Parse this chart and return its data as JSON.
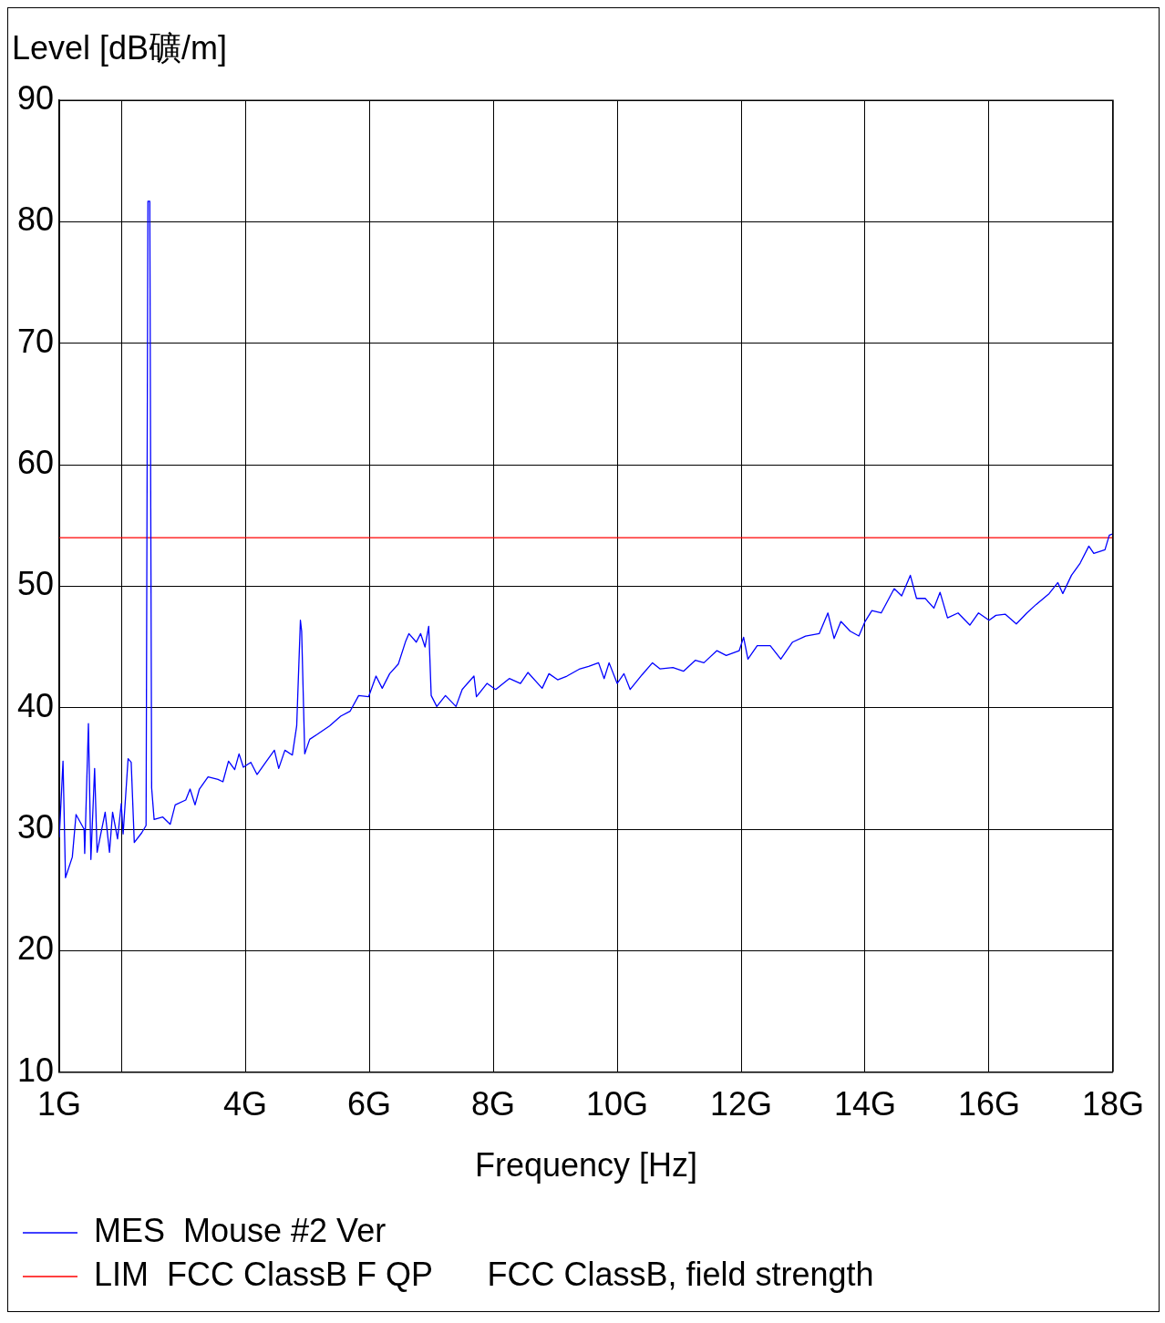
{
  "chart_data": {
    "type": "line",
    "ylabel": "Level [dB礦/m]",
    "xlabel": "Frequency [Hz]",
    "xlim": [
      1,
      18
    ],
    "xticks": [
      {
        "value": 1,
        "label": "1G"
      },
      {
        "value": 2,
        "label": null
      },
      {
        "value": 4,
        "label": "4G"
      },
      {
        "value": 6,
        "label": "6G"
      },
      {
        "value": 8,
        "label": "8G"
      },
      {
        "value": 10,
        "label": "10G"
      },
      {
        "value": 12,
        "label": "12G"
      },
      {
        "value": 14,
        "label": "14G"
      },
      {
        "value": 16,
        "label": "16G"
      },
      {
        "value": 18,
        "label": "18G"
      }
    ],
    "ylim": [
      10,
      90
    ],
    "yticks": [
      10,
      20,
      30,
      40,
      50,
      60,
      70,
      80,
      90
    ],
    "grid": true,
    "legend": "bottom",
    "marker": "none",
    "line_style": "solid",
    "series": [
      {
        "name": "MES  Mouse #2 Ver",
        "color": "#0000ff",
        "x": [
          1.0,
          1.06,
          1.1,
          1.21,
          1.27,
          1.4,
          1.41,
          1.47,
          1.51,
          1.57,
          1.61,
          1.74,
          1.81,
          1.86,
          1.94,
          2.0,
          2.03,
          2.11,
          2.16,
          2.21,
          2.33,
          2.4,
          2.43,
          2.46,
          2.49,
          2.53,
          2.67,
          2.79,
          2.87,
          3.04,
          3.11,
          3.19,
          3.26,
          3.4,
          3.56,
          3.64,
          3.73,
          3.83,
          3.9,
          3.97,
          4.09,
          4.19,
          4.33,
          4.47,
          4.54,
          4.64,
          4.76,
          4.83,
          4.89,
          4.91,
          4.96,
          5.04,
          5.16,
          5.36,
          5.54,
          5.69,
          5.83,
          5.99,
          6.11,
          6.21,
          6.33,
          6.47,
          6.59,
          6.64,
          6.76,
          6.83,
          6.9,
          6.96,
          7.0,
          7.09,
          7.23,
          7.4,
          7.5,
          7.69,
          7.73,
          7.9,
          8.04,
          8.26,
          8.44,
          8.56,
          8.79,
          8.9,
          9.04,
          9.19,
          9.4,
          9.54,
          9.7,
          9.79,
          9.87,
          10.0,
          10.11,
          10.21,
          10.4,
          10.57,
          10.69,
          10.9,
          11.07,
          11.26,
          11.4,
          11.61,
          11.76,
          11.97,
          12.04,
          12.11,
          12.26,
          12.47,
          12.64,
          12.83,
          13.04,
          13.26,
          13.4,
          13.5,
          13.61,
          13.76,
          13.9,
          14.0,
          14.11,
          14.26,
          14.47,
          14.59,
          14.73,
          14.83,
          14.97,
          15.11,
          15.21,
          15.33,
          15.5,
          15.69,
          15.83,
          16.0,
          16.11,
          16.26,
          16.44,
          16.61,
          16.76,
          16.97,
          17.11,
          17.19,
          17.33,
          17.47,
          17.61,
          17.69,
          17.87,
          17.94,
          17.99
        ],
        "values": [
          29.3,
          35.6,
          26.0,
          27.7,
          31.2,
          30.0,
          28.0,
          38.7,
          27.5,
          35.0,
          28.1,
          31.4,
          28.1,
          31.4,
          29.2,
          32.1,
          29.6,
          35.8,
          35.5,
          28.9,
          29.7,
          30.3,
          81.7,
          81.7,
          33.4,
          30.8,
          31.0,
          30.4,
          32.0,
          32.4,
          33.3,
          32.0,
          33.3,
          34.3,
          34.1,
          33.9,
          35.6,
          34.9,
          36.2,
          35.1,
          35.5,
          34.5,
          35.5,
          36.5,
          35.0,
          36.5,
          36.1,
          38.5,
          47.2,
          46.3,
          36.2,
          37.4,
          37.8,
          38.5,
          39.3,
          39.7,
          41.0,
          40.9,
          42.6,
          41.6,
          42.8,
          43.6,
          45.5,
          46.1,
          45.4,
          46.1,
          45.0,
          46.7,
          41.0,
          40.1,
          41.0,
          40.1,
          41.5,
          42.6,
          40.9,
          42.0,
          41.5,
          42.4,
          42.0,
          42.9,
          41.6,
          42.8,
          42.3,
          42.6,
          43.2,
          43.4,
          43.7,
          42.4,
          43.7,
          42.0,
          42.8,
          41.5,
          42.7,
          43.7,
          43.2,
          43.3,
          43.0,
          43.9,
          43.7,
          44.7,
          44.3,
          44.7,
          45.8,
          44.0,
          45.1,
          45.1,
          44.0,
          45.4,
          45.9,
          46.1,
          47.8,
          45.7,
          47.1,
          46.3,
          45.9,
          47.1,
          48.0,
          47.8,
          49.8,
          49.2,
          50.9,
          49.0,
          49.0,
          48.2,
          49.5,
          47.4,
          47.8,
          46.8,
          47.8,
          47.2,
          47.6,
          47.7,
          46.9,
          47.8,
          48.5,
          49.4,
          50.3,
          49.4,
          50.9,
          51.9,
          53.3,
          52.7,
          53.0,
          54.2,
          54.3
        ]
      },
      {
        "name": "LIM  FCC ClassB F QP      FCC ClassB, field strength",
        "color": "#ff0000",
        "x": [
          1,
          18
        ],
        "values": [
          54,
          54
        ]
      }
    ]
  }
}
